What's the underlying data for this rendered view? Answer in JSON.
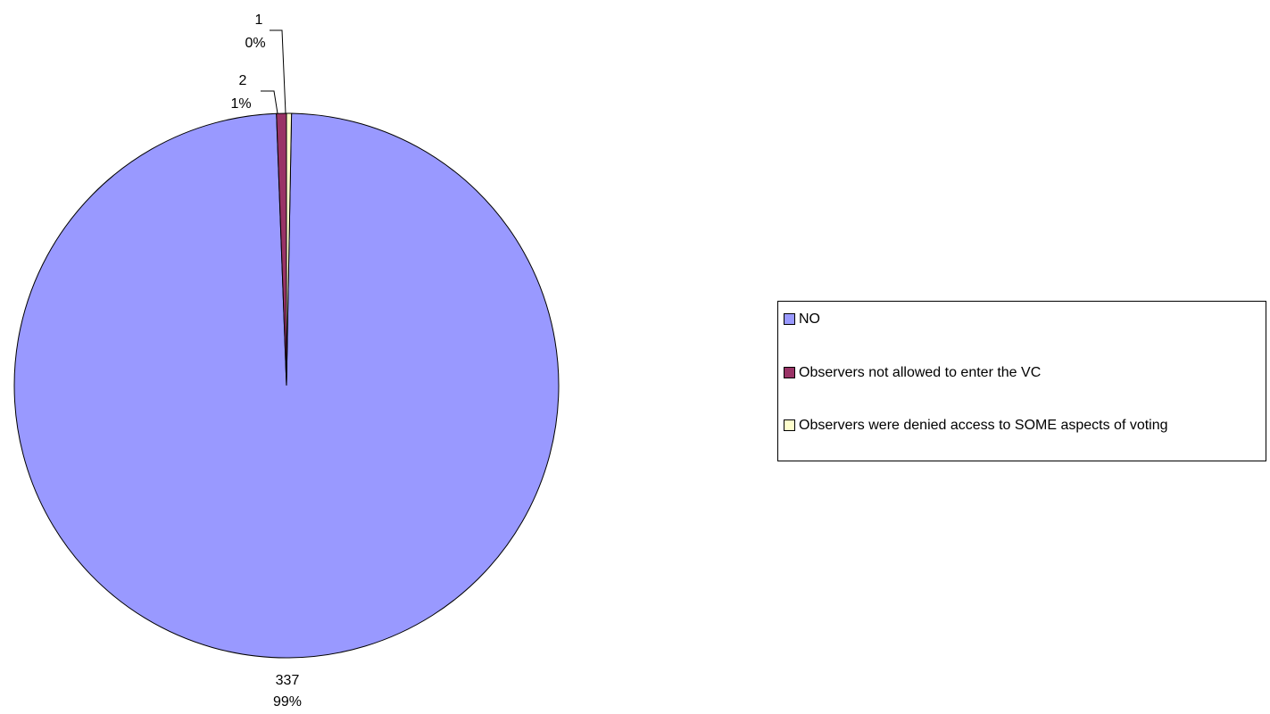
{
  "chart_data": {
    "type": "pie",
    "title": "",
    "categories": [
      "NO",
      "Observers not allowed to enter the VC",
      "Observers were denied access to SOME aspects of voting"
    ],
    "values": [
      337,
      2,
      1
    ],
    "percent_labels": [
      "99%",
      "1%",
      "0%"
    ],
    "colors": [
      "#9999ff",
      "#993366",
      "#ffffcc"
    ],
    "legend_position": "right"
  }
}
